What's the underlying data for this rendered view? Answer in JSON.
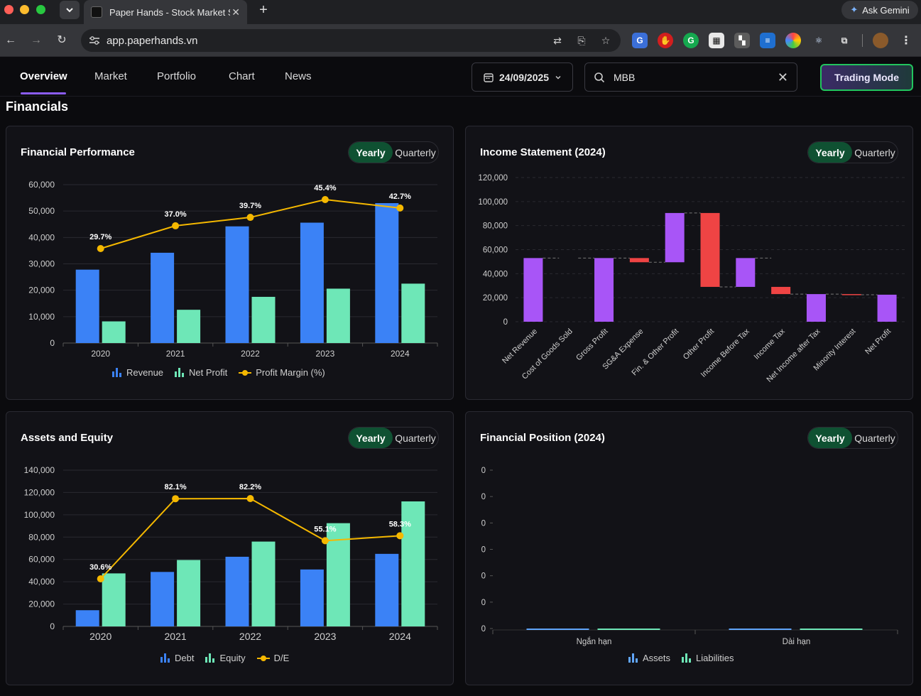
{
  "browser": {
    "tab_title": "Paper Hands - Stock Market S",
    "url": "app.paperhands.vn",
    "gemini_label": "Ask Gemini"
  },
  "nav": {
    "tabs": [
      {
        "label": "Overview",
        "active": true
      },
      {
        "label": "Market",
        "active": false
      },
      {
        "label": "Portfolio",
        "active": false
      },
      {
        "label": "Chart",
        "active": false
      },
      {
        "label": "News",
        "active": false
      }
    ],
    "date": "24/09/2025",
    "search_value": "MBB",
    "trading_mode_label": "Trading Mode"
  },
  "section_title": "Financials",
  "toggle": {
    "yearly": "Yearly",
    "quarterly": "Quarterly"
  },
  "cards": {
    "performance": {
      "title": "Financial Performance"
    },
    "income": {
      "title": "Income Statement (2024)"
    },
    "assets": {
      "title": "Assets and Equity"
    },
    "position": {
      "title": "Financial Position (2024)"
    }
  },
  "colors": {
    "blue": "#3b82f6",
    "green": "#6ee7b7",
    "purple": "#a855f7",
    "red": "#ef4444",
    "gold": "#f5b800"
  },
  "chart_data": [
    {
      "id": "performance",
      "type": "bar",
      "title": "Financial Performance",
      "categories": [
        "2020",
        "2021",
        "2022",
        "2023",
        "2024"
      ],
      "ylim": [
        0,
        60000
      ],
      "yticks": [
        "60,000",
        "50,000",
        "40,000",
        "30,000",
        "20,000",
        "10,000",
        "0"
      ],
      "series": [
        {
          "name": "Revenue",
          "type": "bar",
          "values": [
            27800,
            34200,
            44200,
            45600,
            53000
          ]
        },
        {
          "name": "Net Profit",
          "type": "bar",
          "values": [
            8200,
            12600,
            17500,
            20600,
            22500
          ]
        },
        {
          "name": "Profit Margin (%)",
          "type": "line",
          "values": [
            29.7,
            37.0,
            39.7,
            45.4,
            42.7
          ],
          "labels": [
            "29.7%",
            "37.0%",
            "39.7%",
            "45.4%",
            "42.7%"
          ]
        }
      ],
      "legend": [
        "Revenue",
        "Net Profit",
        "Profit Margin (%)"
      ]
    },
    {
      "id": "income",
      "type": "waterfall",
      "title": "Income Statement (2024)",
      "ylim": [
        0,
        120000
      ],
      "yticks": [
        "120,000",
        "100,000",
        "80,000",
        "60,000",
        "40,000",
        "20,000",
        "0"
      ],
      "categories": [
        "Net Revenue",
        "Cost of Goods Sold",
        "Gross Profit",
        "SG&A Expense",
        "Fin. & Other Profit",
        "Other Profit",
        "Income Before Tax",
        "Income Tax",
        "Net Income after Tax",
        "Minority Interest",
        "Net Profit"
      ],
      "bars": [
        {
          "start": 0,
          "end": 53000,
          "kind": "total"
        },
        {
          "start": 53000,
          "end": 53000,
          "kind": "decrease"
        },
        {
          "start": 0,
          "end": 53000,
          "kind": "total"
        },
        {
          "start": 53000,
          "end": 49500,
          "kind": "decrease"
        },
        {
          "start": 49500,
          "end": 90500,
          "kind": "increase"
        },
        {
          "start": 90500,
          "end": 29000,
          "kind": "decrease"
        },
        {
          "start": 29000,
          "end": 53000,
          "kind": "increase"
        },
        {
          "start": 29000,
          "end": 23000,
          "kind": "decrease"
        },
        {
          "start": 0,
          "end": 23000,
          "kind": "total"
        },
        {
          "start": 23000,
          "end": 22500,
          "kind": "decrease"
        },
        {
          "start": 0,
          "end": 22500,
          "kind": "total"
        }
      ]
    },
    {
      "id": "assets",
      "type": "bar",
      "title": "Assets and Equity",
      "categories": [
        "2020",
        "2021",
        "2022",
        "2023",
        "2024"
      ],
      "ylim": [
        0,
        140000
      ],
      "yticks": [
        "140,000",
        "120,000",
        "100,000",
        "80,000",
        "60,000",
        "40,000",
        "20,000",
        "0"
      ],
      "series": [
        {
          "name": "Debt",
          "type": "bar",
          "values": [
            14500,
            48800,
            62400,
            51000,
            65000
          ]
        },
        {
          "name": "Equity",
          "type": "bar",
          "values": [
            47500,
            59500,
            76000,
            92500,
            112000
          ]
        },
        {
          "name": "D/E",
          "type": "line",
          "values": [
            30.6,
            82.1,
            82.2,
            55.1,
            58.3
          ],
          "labels": [
            "30.6%",
            "82.1%",
            "82.2%",
            "55.1%",
            "58.3%"
          ]
        }
      ],
      "legend": [
        "Debt",
        "Equity",
        "D/E"
      ]
    },
    {
      "id": "position",
      "type": "bar",
      "title": "Financial Position (2024)",
      "categories": [
        "Ngắn hạn",
        "Dài hạn"
      ],
      "yticks": [
        "0",
        "0",
        "0",
        "0",
        "0",
        "0",
        "0"
      ],
      "series": [
        {
          "name": "Assets",
          "values": [
            0,
            0
          ]
        },
        {
          "name": "Liabilities",
          "values": [
            0,
            0
          ]
        }
      ],
      "legend": [
        "Assets",
        "Liabilities"
      ]
    }
  ]
}
